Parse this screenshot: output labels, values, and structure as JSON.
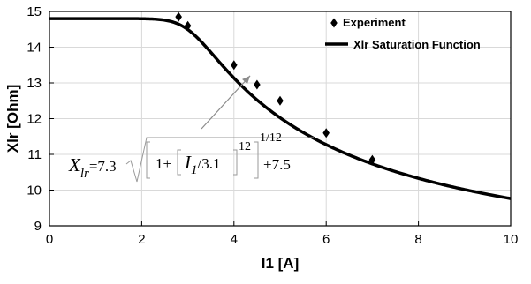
{
  "chart_data": {
    "type": "line",
    "xlabel": "I1 [A]",
    "ylabel": "Xlr [Ohm]",
    "xlim": [
      0,
      10
    ],
    "ylim": [
      9,
      15
    ],
    "xticks": [
      "0",
      "2",
      "4",
      "6",
      "8",
      "10"
    ],
    "yticks": [
      "9",
      "10",
      "11",
      "12",
      "13",
      "14",
      "15"
    ],
    "grid": true,
    "legend_position": "top-right",
    "series": [
      {
        "name": "Experiment",
        "kind": "scatter",
        "marker": "diamond",
        "color": "#000000",
        "x": [
          2.8,
          3.0,
          4.0,
          4.5,
          5.0,
          6.0,
          7.0
        ],
        "y": [
          14.85,
          14.6,
          13.5,
          12.95,
          12.5,
          11.6,
          10.85
        ]
      },
      {
        "name": "Xlr Saturation Function",
        "kind": "line",
        "color": "#000000",
        "formula": {
          "a": 7.3,
          "b": 3.1,
          "n": 12,
          "c": 7.5
        }
      }
    ],
    "annotation": {
      "lhs_main": "X",
      "lhs_sub": "lr",
      "rhs_a": "=7.3",
      "rhs_one": "1+",
      "rhs_var": "I",
      "rhs_var_sub": "1",
      "rhs_div": "/3.1",
      "rhs_pow": "12",
      "rhs_root": "1/12",
      "rhs_plus": "+7.5",
      "arrow_target": [
        4.35,
        13.2
      ]
    }
  }
}
